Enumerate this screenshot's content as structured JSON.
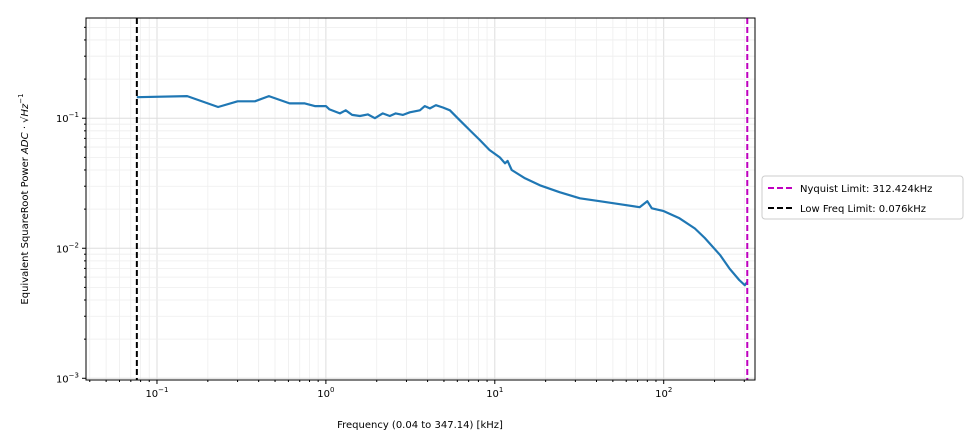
{
  "chart_data": {
    "type": "line",
    "xlabel": "Frequency (0.04 to 347.14) [kHz]",
    "ylabel": {
      "prefix": "Equivalent SquareRoot Power ",
      "math": "ADC · √Hz",
      "exp": "−1"
    },
    "xscale": "log",
    "yscale": "log",
    "xlim": [
      0.038,
      347.14
    ],
    "ylim": [
      0.00097,
      0.59
    ],
    "grid": "major and minor, light gray",
    "legend_placement": "outside right, center",
    "xticks": [
      {
        "value": 0.1,
        "base": "10",
        "exp": "−1"
      },
      {
        "value": 1,
        "base": "10",
        "exp": "0"
      },
      {
        "value": 10,
        "base": "10",
        "exp": "1"
      },
      {
        "value": 100,
        "base": "10",
        "exp": "2"
      }
    ],
    "yticks": [
      {
        "value": 0.001,
        "base": "10",
        "exp": "−3"
      },
      {
        "value": 0.01,
        "base": "10",
        "exp": "−2"
      },
      {
        "value": 0.1,
        "base": "10",
        "exp": "−1"
      }
    ],
    "series": [
      {
        "color": "#1f77b4",
        "x": [
          0.076,
          0.151,
          0.23,
          0.3,
          0.38,
          0.46,
          0.61,
          0.75,
          0.86,
          1.0,
          1.05,
          1.21,
          1.31,
          1.43,
          1.59,
          1.77,
          1.95,
          2.17,
          2.39,
          2.59,
          2.86,
          3.14,
          3.6,
          3.85,
          4.13,
          4.48,
          4.93,
          5.42,
          6.2,
          7.1,
          8.15,
          9.3,
          10.7,
          11.5,
          11.9,
          12.6,
          15.1,
          18.5,
          24.2,
          31.9,
          41.8,
          55,
          72,
          80,
          85,
          100,
          124,
          153,
          175,
          215,
          245,
          280,
          302,
          312
        ],
        "y": [
          0.145,
          0.148,
          0.122,
          0.135,
          0.135,
          0.148,
          0.13,
          0.13,
          0.124,
          0.124,
          0.117,
          0.109,
          0.115,
          0.106,
          0.104,
          0.107,
          0.1,
          0.109,
          0.104,
          0.109,
          0.106,
          0.111,
          0.115,
          0.124,
          0.119,
          0.126,
          0.121,
          0.115,
          0.0965,
          0.081,
          0.068,
          0.057,
          0.05,
          0.045,
          0.047,
          0.04,
          0.0345,
          0.0305,
          0.027,
          0.0242,
          0.023,
          0.0218,
          0.0207,
          0.023,
          0.0203,
          0.0193,
          0.017,
          0.0142,
          0.012,
          0.0089,
          0.007,
          0.0057,
          0.0052,
          0.0055
        ]
      }
    ],
    "vlines": [
      {
        "name": "Nyquist Limit: 312.424kHz",
        "x": 312.424,
        "color": "#bf00bf",
        "style": "dashed"
      },
      {
        "name": "Low Freq Limit: 0.076kHz",
        "x": 0.076,
        "color": "#000000",
        "style": "dashed"
      }
    ]
  }
}
